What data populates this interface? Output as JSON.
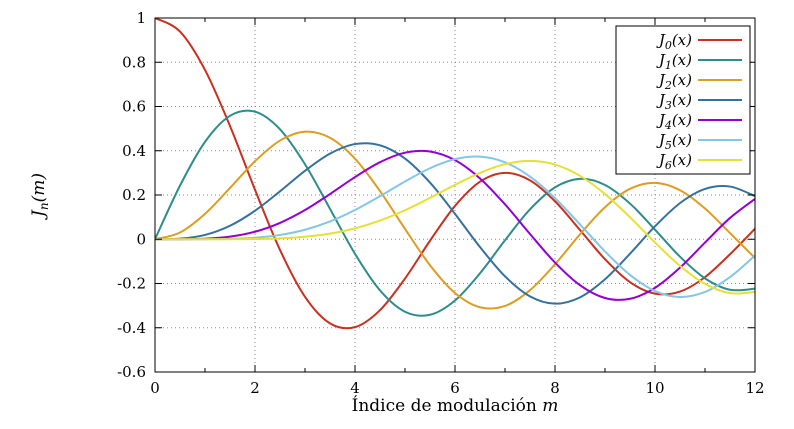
{
  "chart_data": {
    "type": "line",
    "title": "",
    "xlabel": {
      "text": "Índice de modulación",
      "var": "m"
    },
    "ylabel": {
      "base": "J",
      "sub": "n",
      "args": "(m)"
    },
    "xlim": [
      0,
      12
    ],
    "ylim": [
      -0.6,
      1.0
    ],
    "grid": true,
    "legend_position": "top-right",
    "xticks": [
      {
        "v": 0,
        "label": "0"
      },
      {
        "v": 2,
        "label": "2"
      },
      {
        "v": 4,
        "label": "4"
      },
      {
        "v": 6,
        "label": "6"
      },
      {
        "v": 8,
        "label": "8"
      },
      {
        "v": 10,
        "label": "10"
      },
      {
        "v": 12,
        "label": "12"
      }
    ],
    "minor_xticks": [
      1,
      3,
      5,
      7,
      9,
      11
    ],
    "yticks": [
      {
        "v": 1.0,
        "label": "1"
      },
      {
        "v": 0.8,
        "label": "0.8"
      },
      {
        "v": 0.6,
        "label": "0.6"
      },
      {
        "v": 0.4,
        "label": "0.4"
      },
      {
        "v": 0.2,
        "label": "0.2"
      },
      {
        "v": 0,
        "label": "0"
      },
      {
        "v": -0.2,
        "label": "-0.2"
      },
      {
        "v": -0.4,
        "label": "-0.4"
      },
      {
        "v": -0.6,
        "label": "-0.6"
      }
    ],
    "x": [
      0,
      0.5,
      1,
      1.5,
      2,
      2.5,
      3,
      3.5,
      4,
      4.5,
      5,
      5.5,
      6,
      6.5,
      7,
      7.5,
      8,
      8.5,
      9,
      9.5,
      10,
      10.5,
      11,
      11.5,
      12
    ],
    "series": [
      {
        "name": "J_0(x)",
        "base": "J",
        "sub": "0",
        "args": "(x)",
        "color": "#c9301f",
        "values": [
          1.0,
          0.9385,
          0.7652,
          0.5118,
          0.2239,
          -0.0484,
          -0.2601,
          -0.3801,
          -0.3971,
          -0.3205,
          -0.1776,
          -0.0068,
          0.1506,
          0.2601,
          0.3001,
          0.2663,
          0.1717,
          0.0419,
          -0.0903,
          -0.1939,
          -0.2459,
          -0.2366,
          -0.1712,
          -0.0677,
          0.0477
        ]
      },
      {
        "name": "J_1(x)",
        "base": "J",
        "sub": "1",
        "args": "(x)",
        "color": "#2e8c8c",
        "values": [
          0,
          0.2423,
          0.4401,
          0.5579,
          0.5767,
          0.4971,
          0.3391,
          0.1374,
          -0.066,
          -0.2311,
          -0.3276,
          -0.3414,
          -0.2767,
          -0.1538,
          -0.0047,
          0.1352,
          0.2346,
          0.2731,
          0.2453,
          0.1613,
          0.0435,
          -0.0789,
          -0.1768,
          -0.2284,
          -0.2234
        ]
      },
      {
        "name": "J_2(x)",
        "base": "J",
        "sub": "2",
        "args": "(x)",
        "color": "#dd9d21",
        "values": [
          0,
          0.0306,
          0.1149,
          0.2321,
          0.3528,
          0.4461,
          0.4861,
          0.4586,
          0.3641,
          0.2178,
          0.0466,
          -0.1173,
          -0.2429,
          -0.3074,
          -0.3014,
          -0.2303,
          -0.113,
          0.0223,
          0.1448,
          0.2279,
          0.2546,
          0.2216,
          0.139,
          0.0279,
          -0.0849
        ]
      },
      {
        "name": "J_3(x)",
        "base": "J",
        "sub": "3",
        "args": "(x)",
        "color": "#35719f",
        "values": [
          0,
          0.0026,
          0.0196,
          0.061,
          0.1289,
          0.2166,
          0.3091,
          0.3868,
          0.4302,
          0.4247,
          0.3648,
          0.2561,
          0.1148,
          -0.0353,
          -0.1676,
          -0.2581,
          -0.2911,
          -0.2626,
          -0.1809,
          -0.0653,
          0.0584,
          0.1633,
          0.2273,
          0.2381,
          0.1951
        ]
      },
      {
        "name": "J_4(x)",
        "base": "J",
        "sub": "4",
        "args": "(x)",
        "color": "#9400d3",
        "values": [
          0,
          0.0002,
          0.0025,
          0.0118,
          0.034,
          0.0738,
          0.132,
          0.2044,
          0.2811,
          0.3484,
          0.3912,
          0.3967,
          0.3576,
          0.2748,
          0.1578,
          0.0238,
          -0.1054,
          -0.2077,
          -0.2655,
          -0.2691,
          -0.2196,
          -0.1283,
          -0.015,
          0.0963,
          0.1825
        ]
      },
      {
        "name": "J_5(x)",
        "base": "J",
        "sub": "5",
        "args": "(x)",
        "color": "#85c5e6",
        "values": [
          0,
          0.0,
          0.0002,
          0.0018,
          0.007,
          0.0195,
          0.043,
          0.0804,
          0.1321,
          0.1947,
          0.2611,
          0.3209,
          0.3621,
          0.3736,
          0.3479,
          0.2833,
          0.1858,
          0.0671,
          -0.055,
          -0.1613,
          -0.2341,
          -0.2611,
          -0.2383,
          -0.1711,
          -0.0735
        ]
      },
      {
        "name": "J_6(x)",
        "base": "J",
        "sub": "6",
        "args": "(x)",
        "color": "#e5e134",
        "values": [
          0,
          0.0,
          0.0,
          0.0002,
          0.0012,
          0.0042,
          0.0114,
          0.0254,
          0.0491,
          0.0843,
          0.131,
          0.1868,
          0.2458,
          0.2999,
          0.3392,
          0.3541,
          0.3376,
          0.2867,
          0.2043,
          0.0993,
          -0.0145,
          -0.1203,
          -0.2016,
          -0.2437,
          -0.2383
        ]
      }
    ]
  }
}
